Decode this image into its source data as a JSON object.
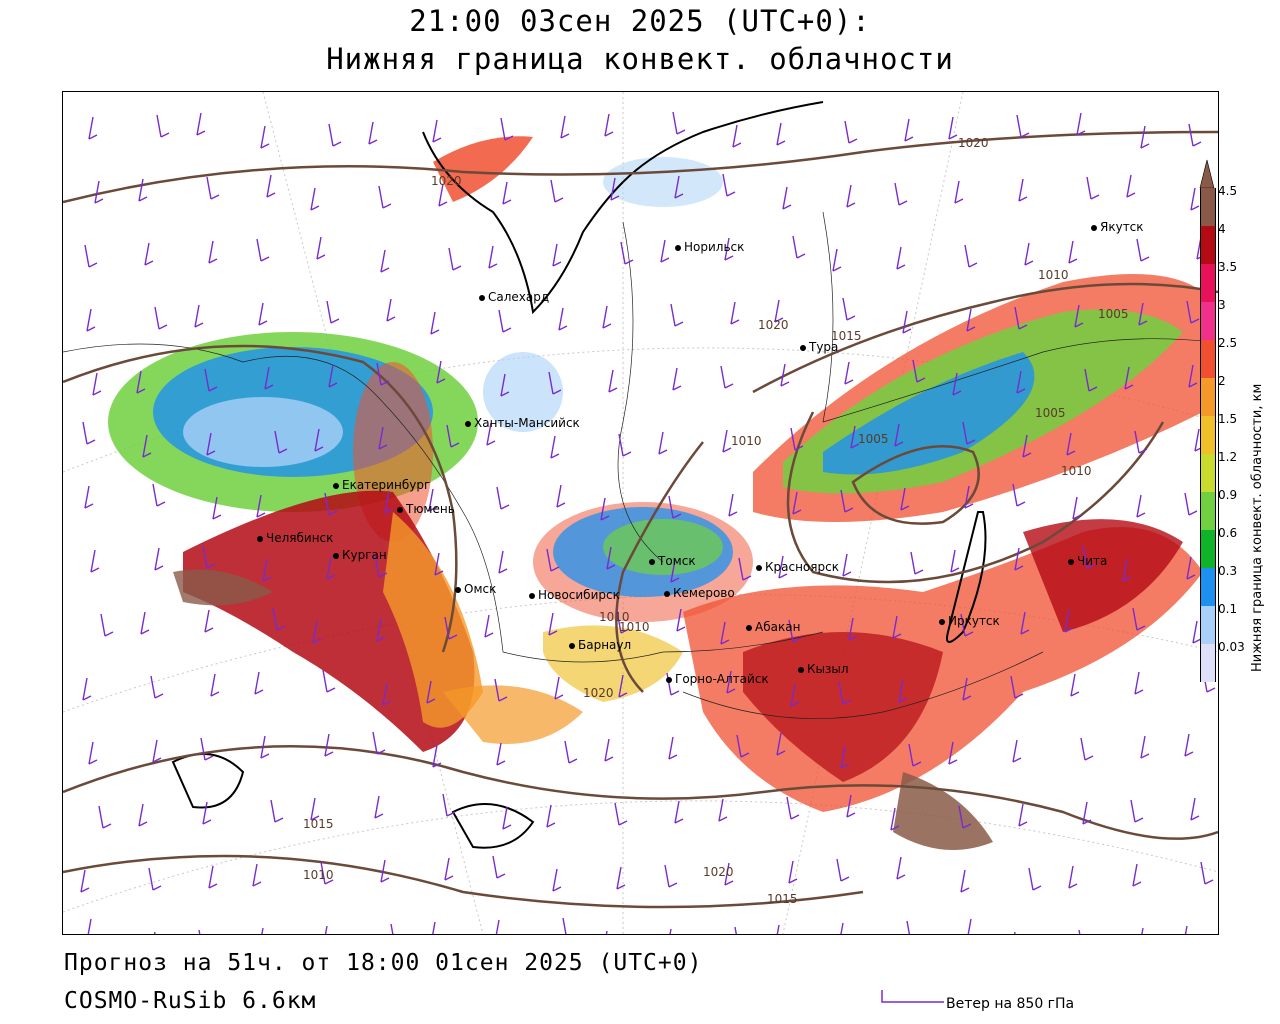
{
  "header": {
    "title": "21:00 03сен 2025 (UTC+0):",
    "subtitle": "Нижняя граница конвект. облачности"
  },
  "footer": {
    "forecast": "Прогноз на 51ч. от 18:00 01сен 2025 (UTC+0)",
    "model": "COSMO-RuSib 6.6км",
    "wind_legend": "Ветер на 850 гПа"
  },
  "legend": {
    "title": "Нижняя граница конвект. облачности, км",
    "entries": [
      {
        "value": "4.5",
        "color": "#8a5a48"
      },
      {
        "value": "4",
        "color": "#b40a14"
      },
      {
        "value": "3.5",
        "color": "#e8125a"
      },
      {
        "value": "3",
        "color": "#f0308a"
      },
      {
        "value": "2.5",
        "color": "#f05030"
      },
      {
        "value": "2",
        "color": "#f59a2a"
      },
      {
        "value": "1.5",
        "color": "#f0c02a"
      },
      {
        "value": "1.2",
        "color": "#c8dc30"
      },
      {
        "value": "0.9",
        "color": "#70d040"
      },
      {
        "value": "0.6",
        "color": "#10b428"
      },
      {
        "value": "0.3",
        "color": "#1e90f0"
      },
      {
        "value": "0.1",
        "color": "#a8d0f8"
      },
      {
        "value": "0.03",
        "color": "#dde0f8"
      }
    ]
  },
  "cities": [
    {
      "name": "Норильск"
    },
    {
      "name": "Якутск"
    },
    {
      "name": "Салехард"
    },
    {
      "name": "Тура"
    },
    {
      "name": "Ханты-Мансийск"
    },
    {
      "name": "Екатеринбург"
    },
    {
      "name": "Тюмень"
    },
    {
      "name": "Челябинск"
    },
    {
      "name": "Курган"
    },
    {
      "name": "Омск"
    },
    {
      "name": "Томск"
    },
    {
      "name": "Красноярск"
    },
    {
      "name": "Новосибирск"
    },
    {
      "name": "Кемерово"
    },
    {
      "name": "Абакан"
    },
    {
      "name": "Барнаул"
    },
    {
      "name": "Горно-Алтайск"
    },
    {
      "name": "Кызыл"
    },
    {
      "name": "Иркутск"
    },
    {
      "name": "Чита"
    }
  ],
  "isobars": [
    {
      "label": "1020"
    },
    {
      "label": "1020"
    },
    {
      "label": "1020"
    },
    {
      "label": "1015"
    },
    {
      "label": "1010"
    },
    {
      "label": "1005"
    },
    {
      "label": "1005"
    },
    {
      "label": "1005"
    },
    {
      "label": "1010"
    },
    {
      "label": "1010"
    },
    {
      "label": "1020"
    },
    {
      "label": "1015"
    },
    {
      "label": "1010"
    },
    {
      "label": "1020"
    },
    {
      "label": "1015"
    },
    {
      "label": "1010"
    },
    {
      "label": "1010"
    }
  ]
}
